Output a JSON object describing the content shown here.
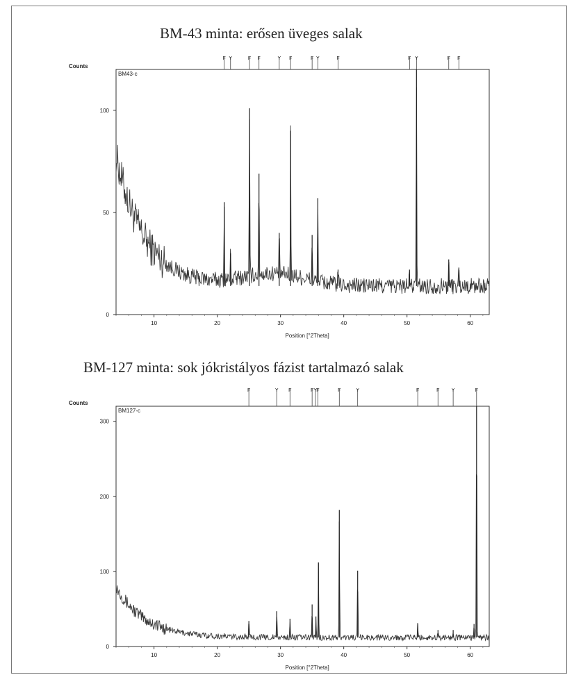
{
  "chart_data": [
    {
      "type": "line",
      "title": "BM-43 minta: erősen üveges salak",
      "plot_label": "BM43-c",
      "xlabel": "Position [°2Theta]",
      "ylabel": "Counts",
      "xlim": [
        4,
        63
      ],
      "ylim": [
        0,
        120
      ],
      "xticks": [
        10,
        20,
        30,
        40,
        50,
        60
      ],
      "yticks": [
        0,
        50,
        100
      ],
      "grid": false,
      "background": {
        "start": 78,
        "plateau": 14,
        "decay": 4.5,
        "hump": 6,
        "hump_center": 29,
        "hump_width": 7,
        "noise": 4
      },
      "peaks": [
        {
          "x": 21.1,
          "y": 55
        },
        {
          "x": 22.1,
          "y": 30
        },
        {
          "x": 25.1,
          "y": 101
        },
        {
          "x": 26.6,
          "y": 69
        },
        {
          "x": 29.8,
          "y": 40
        },
        {
          "x": 31.6,
          "y": 90
        },
        {
          "x": 35.0,
          "y": 39
        },
        {
          "x": 35.9,
          "y": 57
        },
        {
          "x": 39.1,
          "y": 22
        },
        {
          "x": 50.4,
          "y": 22
        },
        {
          "x": 51.5,
          "y": 125
        },
        {
          "x": 56.6,
          "y": 27
        },
        {
          "x": 58.2,
          "y": 23
        }
      ],
      "reference_lines": [
        21.1,
        22.1,
        25.1,
        26.6,
        29.8,
        31.6,
        35.0,
        35.9,
        39.1,
        50.4,
        51.5,
        56.6,
        58.2
      ]
    },
    {
      "type": "line",
      "title": "BM-127 minta: sok jókristályos fázist tartalmazó salak",
      "plot_label": "BM127-c",
      "xlabel": "Position [°2Theta]",
      "ylabel": "Counts",
      "xlim": [
        4,
        63
      ],
      "ylim": [
        0,
        320
      ],
      "xticks": [
        10,
        20,
        30,
        40,
        50,
        60
      ],
      "yticks": [
        0,
        100,
        200,
        300
      ],
      "grid": false,
      "background": {
        "start": 80,
        "plateau": 12,
        "decay": 4.5,
        "hump": 0,
        "hump_center": 29,
        "hump_width": 7,
        "noise": 4
      },
      "peaks": [
        {
          "x": 25.0,
          "y": 34
        },
        {
          "x": 29.4,
          "y": 47
        },
        {
          "x": 31.5,
          "y": 37
        },
        {
          "x": 35.0,
          "y": 56
        },
        {
          "x": 35.6,
          "y": 40
        },
        {
          "x": 36.0,
          "y": 112
        },
        {
          "x": 39.3,
          "y": 182
        },
        {
          "x": 42.2,
          "y": 101
        },
        {
          "x": 51.7,
          "y": 30
        },
        {
          "x": 54.9,
          "y": 22
        },
        {
          "x": 57.3,
          "y": 22
        },
        {
          "x": 60.6,
          "y": 30
        },
        {
          "x": 61.0,
          "y": 330
        }
      ],
      "reference_lines": [
        25.0,
        29.4,
        31.5,
        35.0,
        35.5,
        35.9,
        39.3,
        42.2,
        51.7,
        54.9,
        57.3,
        61.0
      ]
    }
  ]
}
